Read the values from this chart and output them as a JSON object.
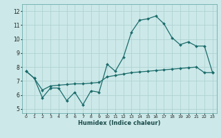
{
  "xlabel": "Humidex (Indice chaleur)",
  "ylabel": "",
  "background_color": "#cce8e8",
  "grid_color": "#aacfcf",
  "line_color": "#1a6b6b",
  "x_ticks": [
    0,
    1,
    2,
    3,
    4,
    5,
    6,
    7,
    8,
    9,
    10,
    11,
    12,
    13,
    14,
    15,
    16,
    17,
    18,
    19,
    20,
    21,
    22,
    23
  ],
  "y_ticks": [
    5,
    6,
    7,
    8,
    9,
    10,
    11,
    12
  ],
  "xlim": [
    -0.5,
    23.5
  ],
  "ylim": [
    4.7,
    12.5
  ],
  "series1_x": [
    0,
    1,
    2,
    3,
    4,
    5,
    6,
    7,
    8,
    9,
    10,
    11,
    12,
    13,
    14,
    15,
    16,
    17,
    18,
    19,
    20,
    21,
    22,
    23
  ],
  "series1_y": [
    7.7,
    7.2,
    5.8,
    6.5,
    6.5,
    5.6,
    6.2,
    5.3,
    6.3,
    6.2,
    8.2,
    7.7,
    8.7,
    10.5,
    11.35,
    11.45,
    11.65,
    11.1,
    10.1,
    9.6,
    9.8,
    9.5,
    9.5,
    7.6
  ],
  "series2_x": [
    0,
    1,
    2,
    3,
    4,
    5,
    6,
    7,
    8,
    9,
    10,
    11,
    12,
    13,
    14,
    15,
    16,
    17,
    18,
    19,
    20,
    21,
    22,
    23
  ],
  "series2_y": [
    7.7,
    7.2,
    6.35,
    6.65,
    6.7,
    6.75,
    6.8,
    6.8,
    6.85,
    6.9,
    7.3,
    7.4,
    7.5,
    7.6,
    7.65,
    7.7,
    7.75,
    7.8,
    7.85,
    7.9,
    7.95,
    8.0,
    7.6,
    7.6
  ]
}
